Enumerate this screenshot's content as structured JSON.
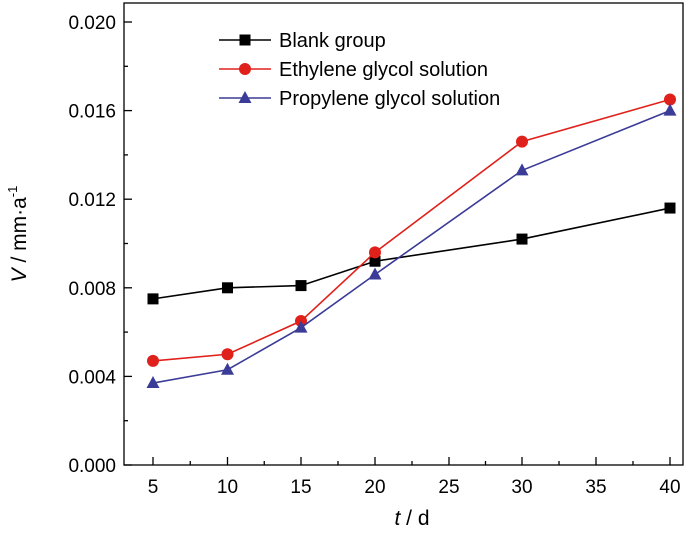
{
  "chart_data": {
    "type": "line",
    "x": [
      5,
      10,
      15,
      20,
      30,
      40
    ],
    "x_tick_labels": [
      "5",
      "10",
      "15",
      "20",
      "25",
      "30",
      "35",
      "40"
    ],
    "y_tick_labels": [
      "0.000",
      "0.004",
      "0.008",
      "0.012",
      "0.016",
      "0.020"
    ],
    "xlabel": {
      "var": "t",
      "rest": " / d"
    },
    "ylabel": {
      "var": "V",
      "rest": " / mm·a",
      "sup": "-1"
    },
    "ylim": [
      0,
      0.02
    ],
    "grid": false,
    "legend_position": "top-left",
    "series": [
      {
        "name": "Blank group",
        "color": "#000000",
        "marker": "square",
        "values": [
          0.0075,
          0.008,
          0.0081,
          0.0092,
          0.0102,
          0.0116
        ]
      },
      {
        "name": "Ethylene glycol solution",
        "color": "#e0201b",
        "marker": "circle",
        "values": [
          0.0047,
          0.005,
          0.0065,
          0.0096,
          0.0146,
          0.0165
        ]
      },
      {
        "name": "Propylene glycol solution",
        "color": "#3b3b98",
        "marker": "triangle",
        "values": [
          0.0037,
          0.0043,
          0.0062,
          0.0086,
          0.0133,
          0.016
        ]
      }
    ]
  }
}
